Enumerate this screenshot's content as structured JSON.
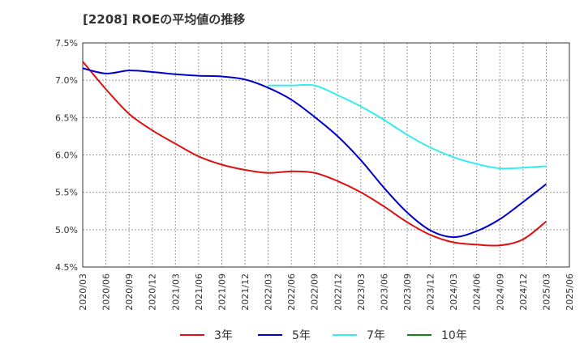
{
  "chart_data": {
    "type": "line",
    "title": "[2208]  ROEの平均値の推移",
    "xlabel": "",
    "ylabel": "",
    "ylim": [
      4.5,
      7.5
    ],
    "yticks": [
      4.5,
      5.0,
      5.5,
      6.0,
      6.5,
      7.0,
      7.5
    ],
    "ytick_labels": [
      "4.5%",
      "5.0%",
      "5.5%",
      "6.0%",
      "6.5%",
      "7.0%",
      "7.5%"
    ],
    "categories": [
      "2020/03",
      "2020/06",
      "2020/09",
      "2020/12",
      "2021/03",
      "2021/06",
      "2021/09",
      "2021/12",
      "2022/03",
      "2022/06",
      "2022/09",
      "2022/12",
      "2023/03",
      "2023/06",
      "2023/09",
      "2023/12",
      "2024/03",
      "2024/06",
      "2024/09",
      "2024/12",
      "2025/03",
      "2025/06"
    ],
    "grid": true,
    "legend_position": "bottom",
    "series": [
      {
        "name": "3年",
        "color": "#dd1111",
        "values": [
          7.25,
          6.88,
          6.55,
          6.33,
          6.15,
          5.98,
          5.87,
          5.8,
          5.76,
          5.78,
          5.76,
          5.65,
          5.5,
          5.31,
          5.1,
          4.93,
          4.83,
          4.8,
          4.79,
          4.87,
          5.11,
          null
        ]
      },
      {
        "name": "5年",
        "color": "#0000cc",
        "values": [
          7.16,
          7.09,
          7.13,
          7.11,
          7.08,
          7.06,
          7.05,
          7.01,
          6.9,
          6.74,
          6.51,
          6.25,
          5.93,
          5.56,
          5.23,
          4.99,
          4.9,
          4.98,
          5.14,
          5.37,
          5.61,
          null
        ]
      },
      {
        "name": "7年",
        "color": "#33eeee",
        "values": [
          null,
          null,
          null,
          null,
          null,
          null,
          null,
          null,
          6.93,
          6.93,
          6.93,
          6.8,
          6.65,
          6.47,
          6.27,
          6.1,
          5.97,
          5.88,
          5.82,
          5.83,
          5.85,
          null
        ]
      },
      {
        "name": "10年",
        "color": "#118811",
        "values": [
          null,
          null,
          null,
          null,
          null,
          null,
          null,
          null,
          null,
          null,
          null,
          null,
          null,
          null,
          null,
          null,
          null,
          null,
          null,
          null,
          null,
          null
        ]
      }
    ]
  }
}
